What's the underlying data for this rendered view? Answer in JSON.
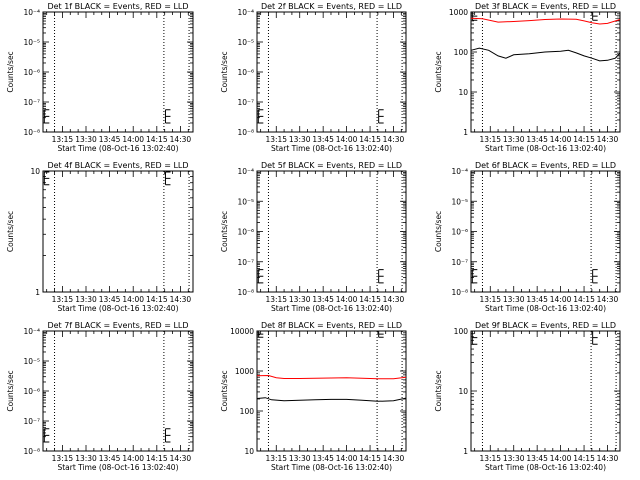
{
  "figure": {
    "background": "#ffffff",
    "series_colors": {
      "events": "#000000",
      "lld": "#ff0000"
    },
    "ylabel": "Counts/sec",
    "xlabel": "Start Time (08-Oct-16 13:02:40)",
    "xticks": [
      "13:15",
      "13:30",
      "13:45",
      "14:00",
      "14:15",
      "14:30"
    ]
  },
  "chart_data": [
    {
      "id": "det1",
      "type": "line",
      "title": "Det 1f BLACK = Events, RED = LLD",
      "xlabel": "Start Time (08-Oct-16 13:02:40)",
      "ylabel": "Counts/sec",
      "yscale": "log",
      "ylim": [
        1e-08,
        0.0001
      ],
      "yticks": [
        "10⁻⁸",
        "10⁻⁷",
        "10⁻⁶",
        "10⁻⁵",
        "10⁻⁴"
      ],
      "xticks": [
        "13:15",
        "13:30",
        "13:45",
        "14:00",
        "14:15",
        "14:30"
      ],
      "xlim": [
        "13:02:40",
        "14:38:00"
      ],
      "vlines": [
        "13:10:00",
        "14:19:30",
        "14:35:30"
      ],
      "error_marks": [
        {
          "x": "13:03:30",
          "y_low": 2e-08,
          "y_high": 5.5e-08
        },
        {
          "x": "14:20:30",
          "y_low": 2e-08,
          "y_high": 5.5e-08
        }
      ],
      "series": []
    },
    {
      "id": "det2",
      "type": "line",
      "title": "Det 2f BLACK = Events, RED = LLD",
      "xlabel": "Start Time (08-Oct-16 13:02:40)",
      "ylabel": "Counts/sec",
      "yscale": "log",
      "ylim": [
        1e-08,
        0.0001
      ],
      "yticks": [
        "10⁻⁸",
        "10⁻⁷",
        "10⁻⁶",
        "10⁻⁵",
        "10⁻⁴"
      ],
      "xticks": [
        "13:15",
        "13:30",
        "13:45",
        "14:00",
        "14:15",
        "14:30"
      ],
      "xlim": [
        "13:02:40",
        "14:38:00"
      ],
      "vlines": [
        "13:10:00",
        "14:19:30",
        "14:35:30"
      ],
      "error_marks": [
        {
          "x": "13:03:30",
          "y_low": 2e-08,
          "y_high": 5.5e-08
        },
        {
          "x": "14:20:30",
          "y_low": 2e-08,
          "y_high": 5.5e-08
        }
      ],
      "series": []
    },
    {
      "id": "det3",
      "type": "line",
      "title": "Det 3f BLACK = Events, RED = LLD",
      "xlabel": "Start Time (08-Oct-16 13:02:40)",
      "ylabel": "Counts/sec",
      "yscale": "log",
      "ylim": [
        1,
        1000
      ],
      "yticks": [
        "1",
        "10",
        "100",
        "1000"
      ],
      "xticks": [
        "13:15",
        "13:30",
        "13:45",
        "14:00",
        "14:15",
        "14:30"
      ],
      "xlim": [
        "13:02:40",
        "14:38:00"
      ],
      "vlines": [
        "13:10:00",
        "14:19:30",
        "14:35:30"
      ],
      "error_marks": [
        {
          "x": "13:03:30",
          "y_low": 620,
          "y_high": 1000
        },
        {
          "x": "14:20:30",
          "y_low": 620,
          "y_high": 1000
        }
      ],
      "series": [
        {
          "role": "lld",
          "x": [
            "13:02:40",
            "13:10:00",
            "13:20:00",
            "13:30:00",
            "13:40:00",
            "13:50:00",
            "14:00:00",
            "14:10:00",
            "14:15:00",
            "14:20:00",
            "14:25:00",
            "14:30:00",
            "14:38:00"
          ],
          "values": [
            700,
            680,
            560,
            580,
            610,
            650,
            670,
            660,
            600,
            540,
            500,
            520,
            650
          ]
        },
        {
          "role": "events",
          "x": [
            "13:02:40",
            "13:08:00",
            "13:14:00",
            "13:20:00",
            "13:25:00",
            "13:30:00",
            "13:40:00",
            "13:50:00",
            "14:00:00",
            "14:05:00",
            "14:10:00",
            "14:15:00",
            "14:20:00",
            "14:25:00",
            "14:30:00",
            "14:35:00",
            "14:38:00"
          ],
          "values": [
            110,
            125,
            110,
            80,
            70,
            85,
            90,
            100,
            105,
            110,
            95,
            80,
            70,
            60,
            62,
            70,
            95
          ]
        }
      ]
    },
    {
      "id": "det4",
      "type": "line",
      "title": "Det 4f BLACK = Events, RED = LLD",
      "xlabel": "Start Time (08-Oct-16 13:02:40)",
      "ylabel": "Counts/sec",
      "yscale": "log",
      "ylim": [
        1,
        10
      ],
      "yticks": [
        "1",
        "10"
      ],
      "xticks": [
        "13:15",
        "13:30",
        "13:45",
        "14:00",
        "14:15",
        "14:30"
      ],
      "xlim": [
        "13:02:40",
        "14:38:00"
      ],
      "vlines": [
        "13:10:00",
        "14:19:30",
        "14:35:30"
      ],
      "error_marks": [
        {
          "x": "13:03:30",
          "y_low": 7.7,
          "y_high": 9.8
        },
        {
          "x": "14:20:30",
          "y_low": 7.7,
          "y_high": 9.8
        }
      ],
      "series": []
    },
    {
      "id": "det5",
      "type": "line",
      "title": "Det 5f BLACK = Events, RED = LLD",
      "xlabel": "Start Time (08-Oct-16 13:02:40)",
      "ylabel": "Counts/sec",
      "yscale": "log",
      "ylim": [
        1e-08,
        0.0001
      ],
      "yticks": [
        "10⁻⁸",
        "10⁻⁷",
        "10⁻⁶",
        "10⁻⁵",
        "10⁻⁴"
      ],
      "xticks": [
        "13:15",
        "13:30",
        "13:45",
        "14:00",
        "14:15",
        "14:30"
      ],
      "xlim": [
        "13:02:40",
        "14:38:00"
      ],
      "vlines": [
        "13:10:00",
        "14:19:30",
        "14:35:30"
      ],
      "error_marks": [
        {
          "x": "13:03:30",
          "y_low": 2e-08,
          "y_high": 5.5e-08
        },
        {
          "x": "14:20:30",
          "y_low": 2e-08,
          "y_high": 5.5e-08
        }
      ],
      "series": []
    },
    {
      "id": "det6",
      "type": "line",
      "title": "Det 6f BLACK = Events, RED = LLD",
      "xlabel": "Start Time (08-Oct-16 13:02:40)",
      "ylabel": "Counts/sec",
      "yscale": "log",
      "ylim": [
        1e-08,
        0.0001
      ],
      "yticks": [
        "10⁻⁸",
        "10⁻⁷",
        "10⁻⁶",
        "10⁻⁵",
        "10⁻⁴"
      ],
      "xticks": [
        "13:15",
        "13:30",
        "13:45",
        "14:00",
        "14:15",
        "14:30"
      ],
      "xlim": [
        "13:02:40",
        "14:38:00"
      ],
      "vlines": [
        "13:10:00",
        "14:19:30",
        "14:35:30"
      ],
      "error_marks": [
        {
          "x": "13:03:30",
          "y_low": 2e-08,
          "y_high": 5.5e-08
        },
        {
          "x": "14:20:30",
          "y_low": 2e-08,
          "y_high": 5.5e-08
        }
      ],
      "series": []
    },
    {
      "id": "det7",
      "type": "line",
      "title": "Det 7f BLACK = Events, RED = LLD",
      "xlabel": "Start Time (08-Oct-16 13:02:40)",
      "ylabel": "Counts/sec",
      "yscale": "log",
      "ylim": [
        1e-08,
        0.0001
      ],
      "yticks": [
        "10⁻⁸",
        "10⁻⁷",
        "10⁻⁶",
        "10⁻⁵",
        "10⁻⁴"
      ],
      "xticks": [
        "13:15",
        "13:30",
        "13:45",
        "14:00",
        "14:15",
        "14:30"
      ],
      "xlim": [
        "13:02:40",
        "14:38:00"
      ],
      "vlines": [
        "13:10:00",
        "14:19:30",
        "14:35:30"
      ],
      "error_marks": [
        {
          "x": "13:03:30",
          "y_low": 2e-08,
          "y_high": 5.5e-08
        },
        {
          "x": "14:20:30",
          "y_low": 2e-08,
          "y_high": 5.5e-08
        }
      ],
      "series": []
    },
    {
      "id": "det8",
      "type": "line",
      "title": "Det 8f BLACK = Events, RED = LLD",
      "xlabel": "Start Time (08-Oct-16 13:02:40)",
      "ylabel": "Counts/sec",
      "yscale": "log",
      "ylim": [
        10,
        10000
      ],
      "yticks": [
        "10",
        "100",
        "1000",
        "10000"
      ],
      "xticks": [
        "13:15",
        "13:30",
        "13:45",
        "14:00",
        "14:15",
        "14:30"
      ],
      "xlim": [
        "13:02:40",
        "14:38:00"
      ],
      "vlines": [
        "13:10:00",
        "14:19:30",
        "14:35:30"
      ],
      "error_marks": [
        {
          "x": "13:03:30",
          "y_low": 7000,
          "y_high": 10000
        },
        {
          "x": "14:20:30",
          "y_low": 7000,
          "y_high": 10000
        }
      ],
      "series": [
        {
          "role": "lld",
          "x": [
            "13:02:40",
            "13:10:00",
            "13:15:00",
            "13:20:00",
            "13:30:00",
            "13:40:00",
            "13:50:00",
            "14:00:00",
            "14:10:00",
            "14:20:00",
            "14:30:00",
            "14:38:00"
          ],
          "values": [
            760,
            770,
            680,
            650,
            650,
            660,
            670,
            680,
            660,
            640,
            640,
            700
          ]
        },
        {
          "role": "events",
          "x": [
            "13:02:40",
            "13:08:00",
            "13:12:00",
            "13:20:00",
            "13:30:00",
            "13:40:00",
            "13:50:00",
            "14:00:00",
            "14:10:00",
            "14:20:00",
            "14:30:00",
            "14:38:00"
          ],
          "values": [
            205,
            215,
            190,
            180,
            185,
            190,
            195,
            195,
            185,
            175,
            180,
            210
          ]
        }
      ]
    },
    {
      "id": "det9",
      "type": "line",
      "title": "Det 9f BLACK = Events, RED = LLD",
      "xlabel": "Start Time (08-Oct-16 13:02:40)",
      "ylabel": "Counts/sec",
      "yscale": "log",
      "ylim": [
        1,
        100
      ],
      "yticks": [
        "1",
        "10",
        "100"
      ],
      "xticks": [
        "13:15",
        "13:30",
        "13:45",
        "14:00",
        "14:15",
        "14:30"
      ],
      "xlim": [
        "13:02:40",
        "14:38:00"
      ],
      "vlines": [
        "13:10:00",
        "14:19:30",
        "14:35:30"
      ],
      "error_marks": [
        {
          "x": "13:03:30",
          "y_low": 60,
          "y_high": 100
        },
        {
          "x": "14:20:30",
          "y_low": 60,
          "y_high": 100
        }
      ],
      "series": []
    }
  ]
}
